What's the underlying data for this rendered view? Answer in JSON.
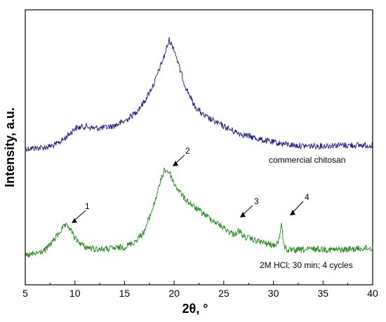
{
  "chart_data": {
    "type": "line",
    "xlabel": "2θ, °",
    "ylabel": "Intensity, a.u.",
    "xlim": [
      5,
      40
    ],
    "x_ticks": [
      5,
      10,
      15,
      20,
      25,
      30,
      35,
      40
    ],
    "x_tick_labels": [
      "5",
      "10",
      "15",
      "20",
      "25",
      "30",
      "35",
      "40"
    ],
    "y_ticks_shown": false,
    "grid": false,
    "colors": {
      "commercial": "#1a1a8c",
      "treated": "#1a8c1a"
    },
    "series": [
      {
        "label": "commercial chitosan",
        "color": "#1a1a8c",
        "x": [
          5,
          6,
          7,
          8,
          9,
          10,
          11,
          12,
          13,
          14,
          15,
          16,
          17,
          18,
          19,
          19.5,
          20,
          20.5,
          21,
          22,
          23,
          24,
          25,
          26,
          27,
          28,
          29,
          30,
          31,
          32,
          33,
          34,
          35,
          36,
          37,
          38,
          39,
          40
        ],
        "y": [
          212,
          211,
          210,
          207,
          197,
          183,
          180,
          183,
          182,
          179,
          173,
          162,
          145,
          118,
          80,
          57,
          70,
          95,
          118,
          150,
          165,
          173,
          180,
          187,
          192,
          196,
          200,
          203,
          205,
          207,
          208,
          208,
          208,
          207,
          207,
          207,
          207,
          207
        ]
      },
      {
        "label": "2M HCl; 30 min; 4 cycles",
        "color": "#1a8c1a",
        "x": [
          5,
          6,
          7,
          8,
          8.5,
          9,
          9.5,
          10,
          11,
          12,
          13,
          14,
          15,
          16,
          17,
          18,
          18.5,
          19,
          19.5,
          20,
          21,
          22,
          23,
          24,
          25,
          26,
          26.5,
          27,
          28,
          29,
          30,
          30.5,
          30.8,
          31.1,
          31.5,
          32,
          33,
          34,
          35,
          36,
          37,
          38,
          39,
          40
        ],
        "y": [
          365,
          362,
          357,
          340,
          330,
          322,
          325,
          340,
          352,
          355,
          355,
          354,
          352,
          345,
          330,
          290,
          265,
          242,
          245,
          262,
          282,
          295,
          305,
          315,
          325,
          334,
          329,
          337,
          342,
          346,
          350,
          345,
          320,
          352,
          357,
          357,
          356,
          355,
          355,
          356,
          356,
          355,
          354,
          354
        ]
      }
    ],
    "annotations": [
      {
        "text": "commercial chitosan"
      },
      {
        "text": "2M HCl; 30 min; 4 cycles"
      },
      {
        "text": "1",
        "peak_x": 9.5
      },
      {
        "text": "2",
        "peak_x": 19.5
      },
      {
        "text": "3",
        "peak_x": 26.5
      },
      {
        "text": "4",
        "peak_x": 30.8
      }
    ]
  }
}
